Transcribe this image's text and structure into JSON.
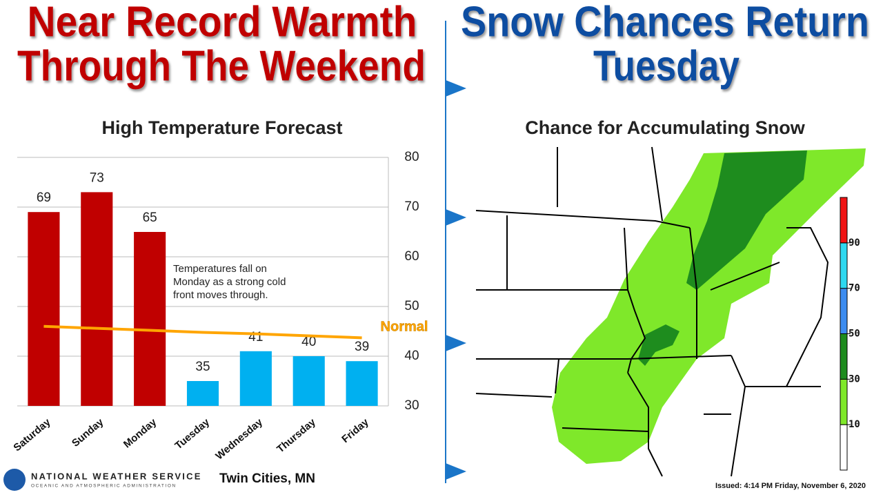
{
  "titles": {
    "left": [
      "Near Record Warmth",
      "Through The Weekend"
    ],
    "right": [
      "Snow Chances Return",
      "Tuesday"
    ]
  },
  "chart_data": {
    "type": "bar",
    "title": "High Temperature Forecast",
    "categories": [
      "Saturday",
      "Sunday",
      "Monday",
      "Tuesday",
      "Wednesday",
      "Thursday",
      "Friday"
    ],
    "values": [
      69,
      73,
      65,
      35,
      41,
      40,
      39
    ],
    "colors": [
      "#c00000",
      "#c00000",
      "#c00000",
      "#00b0f0",
      "#00b0f0",
      "#00b0f0",
      "#00b0f0"
    ],
    "ylim": [
      30,
      80
    ],
    "yticks": [
      30,
      40,
      50,
      60,
      70,
      80
    ],
    "grid": true,
    "normal": {
      "name": "Normal",
      "color": "#ffa500",
      "values": [
        46,
        45.6,
        45.2,
        44.8,
        44.5,
        44.1,
        43.7
      ]
    },
    "annotation": [
      "Temperatures fall on",
      "Monday as a strong cold",
      "front moves through."
    ]
  },
  "map": {
    "title": "Chance for Accumulating Snow",
    "legend": {
      "lim": [
        -10,
        110
      ],
      "ticks": [
        10,
        30,
        50,
        70,
        90
      ],
      "colors": [
        "#ffffff",
        "#7fe82a",
        "#1e8c1e",
        "#3c8cf0",
        "#2ed8f0",
        "#f01414"
      ]
    }
  },
  "footer": {
    "agency": "NATIONAL WEATHER SERVICE",
    "subagency": "OCEANIC AND ATMOSPHERIC ADMINISTRATION",
    "location": "Twin Cities, MN",
    "issued": "Issued: 4:14 PM Friday, November 6, 2020"
  }
}
